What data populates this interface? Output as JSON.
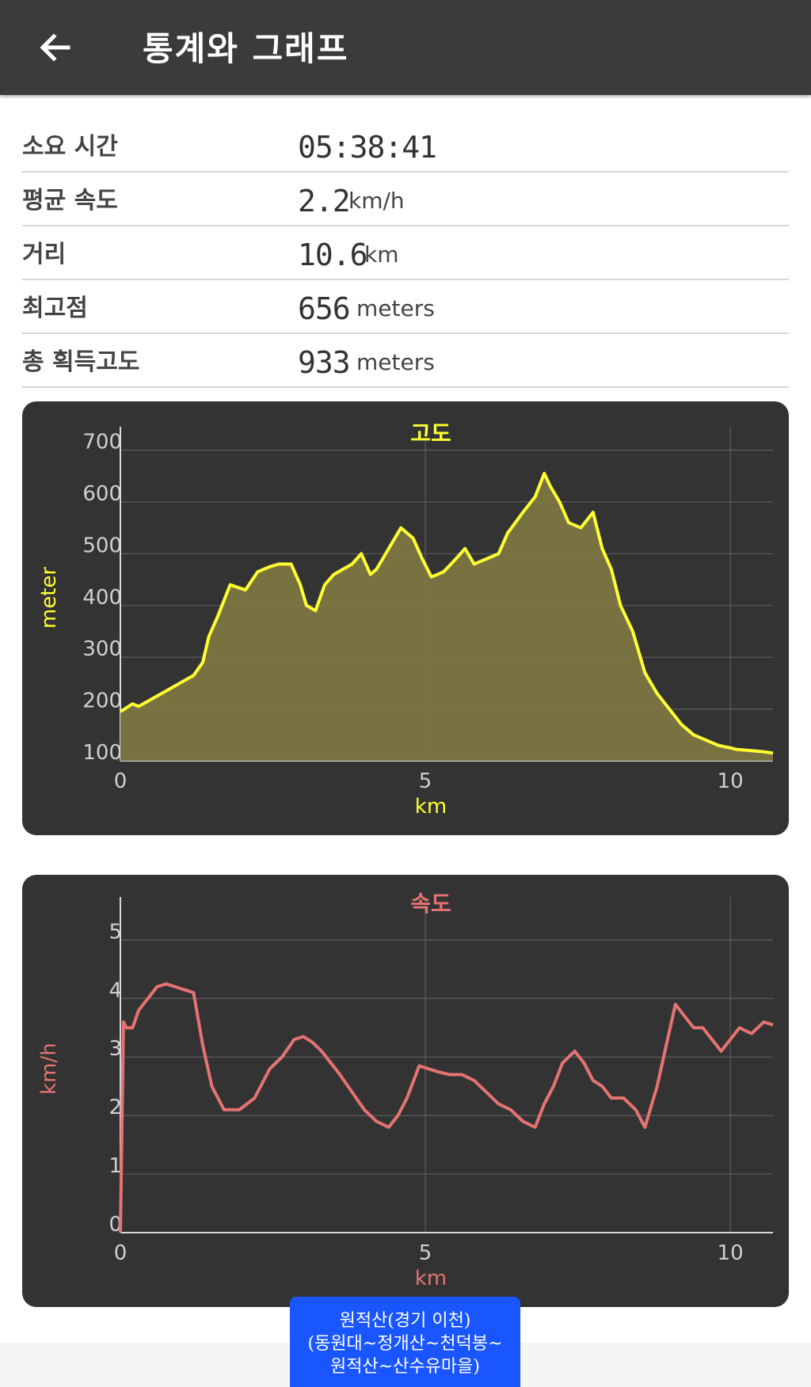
{
  "header": {
    "title": "통계와 그래프",
    "back_icon": "arrow-left-icon"
  },
  "stats": [
    {
      "label": "소요 시간",
      "value": "05:38:41",
      "unit": ""
    },
    {
      "label": "평균 속도",
      "value": "2.2",
      "unit": "km/h"
    },
    {
      "label": "거리",
      "value": "10.6",
      "unit": "km"
    },
    {
      "label": "최고점",
      "value": "656",
      "unit": "meters"
    },
    {
      "label": "총 획득고도",
      "value": "933",
      "unit": "meters"
    }
  ],
  "chart_data": [
    {
      "type": "area",
      "title": "고도",
      "xlabel": "km",
      "ylabel": "meter",
      "color": "#ffff33",
      "fill": "#7b7641",
      "xlim": [
        0,
        10.7
      ],
      "ylim": [
        100,
        730
      ],
      "xticks": [
        0,
        5,
        10
      ],
      "yticks": [
        100,
        200,
        300,
        400,
        500,
        600,
        700
      ],
      "x": [
        0,
        0.2,
        0.3,
        0.45,
        0.6,
        0.75,
        0.9,
        1.05,
        1.2,
        1.35,
        1.45,
        1.6,
        1.8,
        2.05,
        2.25,
        2.45,
        2.6,
        2.8,
        2.95,
        3.05,
        3.2,
        3.35,
        3.5,
        3.65,
        3.8,
        3.95,
        4.1,
        4.2,
        4.3,
        4.45,
        4.6,
        4.8,
        4.95,
        5.1,
        5.3,
        5.5,
        5.65,
        5.8,
        5.9,
        6.0,
        6.2,
        6.35,
        6.6,
        6.8,
        6.95,
        7.05,
        7.2,
        7.35,
        7.55,
        7.75,
        7.9,
        8.05,
        8.2,
        8.4,
        8.6,
        8.8,
        9.0,
        9.2,
        9.4,
        9.6,
        9.8,
        10.0,
        10.1,
        10.3,
        10.5,
        10.7
      ],
      "y": [
        195,
        210,
        205,
        215,
        225,
        235,
        245,
        255,
        265,
        290,
        340,
        380,
        440,
        430,
        465,
        475,
        480,
        480,
        440,
        400,
        390,
        440,
        460,
        470,
        480,
        500,
        460,
        470,
        490,
        520,
        550,
        530,
        490,
        455,
        465,
        490,
        510,
        480,
        485,
        490,
        500,
        540,
        580,
        610,
        655,
        630,
        600,
        560,
        550,
        580,
        510,
        470,
        400,
        350,
        270,
        230,
        200,
        170,
        150,
        140,
        130,
        125,
        122,
        120,
        118,
        115
      ]
    },
    {
      "type": "line",
      "title": "속도",
      "xlabel": "km",
      "ylabel": "km/h",
      "color": "#e57373",
      "xlim": [
        0,
        10.7
      ],
      "ylim": [
        0,
        5.6
      ],
      "xticks": [
        0,
        5,
        10
      ],
      "yticks": [
        0,
        1,
        2,
        3,
        4,
        5
      ],
      "x": [
        0,
        0.05,
        0.1,
        0.2,
        0.3,
        0.45,
        0.6,
        0.75,
        0.9,
        1.05,
        1.2,
        1.35,
        1.5,
        1.7,
        1.95,
        2.2,
        2.45,
        2.65,
        2.85,
        3.0,
        3.15,
        3.3,
        3.45,
        3.6,
        3.8,
        4.0,
        4.2,
        4.4,
        4.55,
        4.7,
        4.9,
        5.05,
        5.2,
        5.4,
        5.6,
        5.8,
        6.0,
        6.2,
        6.4,
        6.6,
        6.8,
        6.95,
        7.1,
        7.25,
        7.45,
        7.6,
        7.75,
        7.9,
        8.05,
        8.25,
        8.45,
        8.6,
        8.8,
        8.95,
        9.1,
        9.25,
        9.4,
        9.55,
        9.7,
        9.85,
        10.0,
        10.15,
        10.35,
        10.55,
        10.7
      ],
      "y": [
        0,
        3.6,
        3.5,
        3.5,
        3.8,
        4.0,
        4.2,
        4.25,
        4.2,
        4.15,
        4.1,
        3.2,
        2.5,
        2.1,
        2.1,
        2.3,
        2.8,
        3.0,
        3.3,
        3.35,
        3.25,
        3.1,
        2.9,
        2.7,
        2.4,
        2.1,
        1.9,
        1.8,
        2.0,
        2.3,
        2.85,
        2.8,
        2.75,
        2.7,
        2.7,
        2.6,
        2.4,
        2.2,
        2.1,
        1.9,
        1.8,
        2.2,
        2.5,
        2.9,
        3.1,
        2.9,
        2.6,
        2.5,
        2.3,
        2.3,
        2.1,
        1.8,
        2.5,
        3.2,
        3.9,
        3.7,
        3.5,
        3.5,
        3.3,
        3.1,
        3.3,
        3.5,
        3.4,
        3.6,
        3.55
      ]
    }
  ],
  "toast": {
    "line1": "원적산(경기 이천)",
    "line2": "(동원대~정개산~천덕봉~",
    "line3": "원적산~산수유마을)"
  }
}
